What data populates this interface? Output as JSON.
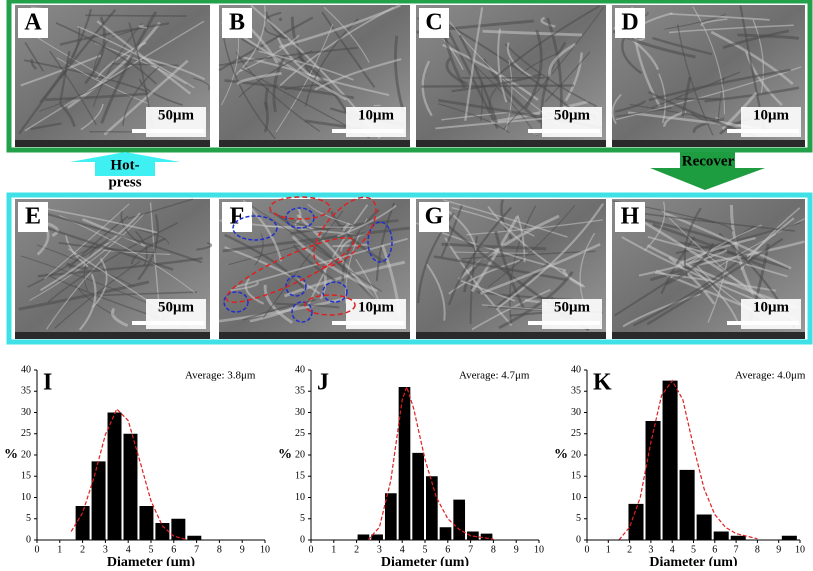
{
  "panels": [
    {
      "label": "A",
      "scale": "50μm"
    },
    {
      "label": "B",
      "scale": "10μm"
    },
    {
      "label": "C",
      "scale": "50μm"
    },
    {
      "label": "D",
      "scale": "10μm"
    },
    {
      "label": "E",
      "scale": "50μm"
    },
    {
      "label": "F",
      "scale": "10μm"
    },
    {
      "label": "G",
      "scale": "50μm"
    },
    {
      "label": "H",
      "scale": "10μm"
    }
  ],
  "arrows": {
    "hot_press": [
      "Hot-",
      "press"
    ],
    "recover": "Recover"
  },
  "chart_data": [
    {
      "type": "histogram",
      "label": "I",
      "annotation": "Average: 3.8μm",
      "x_label": "Diameter (μm)",
      "y_label": "%",
      "bins": [
        1.65,
        2.35,
        3.05,
        3.75,
        4.45,
        5.15,
        5.85,
        6.55,
        7.25
      ],
      "values": [
        8,
        18.5,
        30,
        25,
        8,
        4,
        5,
        1
      ],
      "color": "#000000",
      "fit": {
        "color": "#e02020",
        "x": [
          1.5,
          2.0,
          2.5,
          3.0,
          3.5,
          4.0,
          4.5,
          5.0,
          5.5,
          6.0,
          6.5
        ],
        "values": [
          2.0,
          6.4,
          14.7,
          24.8,
          30.8,
          28.1,
          18.8,
          9.2,
          3.3,
          0.9,
          0.2
        ]
      },
      "xlim": [
        0,
        10
      ],
      "xticks": [
        0,
        1,
        2,
        3,
        4,
        5,
        6,
        7,
        8,
        9,
        10
      ],
      "ylim": [
        0,
        40
      ],
      "yticks": [
        0,
        5,
        10,
        15,
        20,
        25,
        30,
        35,
        40
      ]
    },
    {
      "type": "histogram",
      "label": "J",
      "annotation": "Average: 4.7μm",
      "x_label": "Diameter (μm)",
      "y_label": "%",
      "bins": [
        2.0,
        2.6,
        3.2,
        3.8,
        4.4,
        5.0,
        5.6,
        6.2,
        6.8,
        7.4,
        8.0
      ],
      "values": [
        1.3,
        1.3,
        11,
        36,
        20.5,
        15,
        3,
        9.5,
        2,
        1.5
      ],
      "color": "#000000",
      "fit": {
        "color": "#e02020",
        "x": [
          2.5,
          3.0,
          3.5,
          4.0,
          4.2,
          4.5,
          5.0,
          5.5,
          6.0,
          6.5,
          7.0,
          8.0
        ],
        "values": [
          0,
          3,
          14,
          33,
          36,
          31,
          19,
          10,
          5,
          2.5,
          1,
          0.2
        ]
      },
      "xlim": [
        0,
        10
      ],
      "xticks": [
        0,
        1,
        2,
        3,
        4,
        5,
        6,
        7,
        8,
        9,
        10
      ],
      "ylim": [
        0,
        40
      ],
      "yticks": [
        0,
        5,
        10,
        15,
        20,
        25,
        30,
        35,
        40
      ]
    },
    {
      "type": "histogram",
      "label": "K",
      "annotation": "Average: 4.0μm",
      "x_label": "Diameter (μm)",
      "y_label": "%",
      "bins": [
        1.9,
        2.7,
        3.5,
        4.3,
        5.1,
        5.9,
        6.7,
        7.5,
        8.3,
        9.1,
        9.9
      ],
      "values": [
        8.5,
        28,
        37.5,
        16.5,
        6,
        2,
        1,
        0,
        0,
        1
      ],
      "color": "#000000",
      "fit": {
        "color": "#e02020",
        "x": [
          1.5,
          2.0,
          2.5,
          3.0,
          3.5,
          4.0,
          4.5,
          5.0,
          5.5,
          6.0,
          6.5,
          7.0,
          8.0
        ],
        "values": [
          0,
          3,
          10,
          23,
          34,
          37.5,
          33,
          22,
          12,
          6,
          3,
          1.5,
          0.3
        ]
      },
      "xlim": [
        0,
        10
      ],
      "xticks": [
        0,
        1,
        2,
        3,
        4,
        5,
        6,
        7,
        8,
        9,
        10
      ],
      "ylim": [
        0,
        40
      ],
      "yticks": [
        0,
        5,
        10,
        15,
        20,
        25,
        30,
        35,
        40
      ]
    }
  ]
}
